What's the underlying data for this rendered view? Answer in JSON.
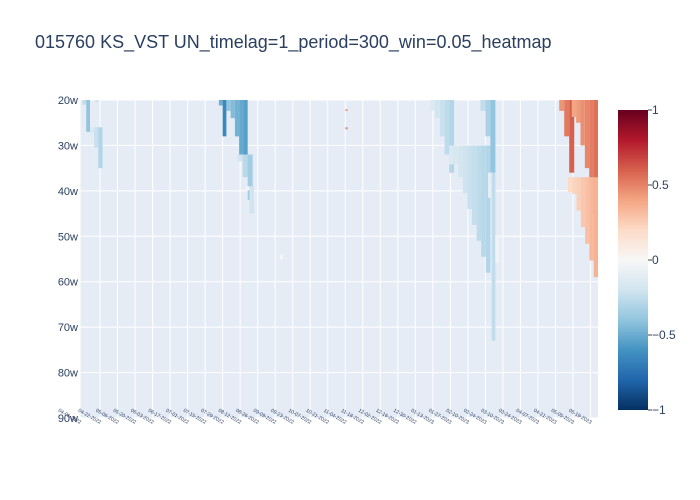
{
  "chart_data": {
    "type": "heatmap",
    "title": "015760 KS_VST UN_timelag=1_period=300_win=0.05_heatmap",
    "y_tick_labels": [
      "20w",
      "30w",
      "40w",
      "50w",
      "60w",
      "70w",
      "80w",
      "90w"
    ],
    "y_tick_values": [
      20,
      30,
      40,
      50,
      60,
      70,
      80,
      90
    ],
    "y_range": [
      20,
      90
    ],
    "x_range": [
      "2022-04-06",
      "2023-05-25"
    ],
    "x_tick_labels": [
      "04-06-2022",
      "04-22-2022",
      "05-06-2022",
      "05-20-2022",
      "06-03-2022",
      "06-17-2022",
      "07-01-2022",
      "07-15-2022",
      "07-29-2022",
      "08-12-2022",
      "08-26-2022",
      "09-09-2022",
      "09-23-2022",
      "10-07-2022",
      "10-21-2022",
      "11-04-2022",
      "11-18-2022",
      "12-02-2022",
      "12-16-2022",
      "12-30-2022",
      "01-13-2023",
      "01-27-2023",
      "02-10-2023",
      "02-24-2023",
      "03-10-2023",
      "03-24-2023",
      "04-07-2023",
      "04-21-2023",
      "05-05-2023",
      "05-19-2023"
    ],
    "colorscale": "RdBu reversed",
    "colorbar": {
      "range": [
        -1,
        1
      ],
      "tick_labels": [
        "1",
        "0.5",
        "0",
        "−0.5",
        "−1"
      ],
      "tick_values": [
        1,
        0.5,
        0,
        -0.5,
        -1
      ]
    },
    "grid": true,
    "plot_bgcolor": "#e5ecf6",
    "bands": [
      {
        "x_start": "2022-04-08",
        "x_end": "2022-04-14",
        "week_start": 20,
        "week_end": 27,
        "value": -0.4
      },
      {
        "x_start": "2022-04-14",
        "x_end": "2022-04-24",
        "week_start": 26,
        "week_end": 35,
        "value": -0.3
      },
      {
        "x_start": "2022-04-18",
        "x_end": "2022-04-21",
        "week_start": 20,
        "week_end": 22,
        "value": -0.35
      },
      {
        "x_start": "2022-07-26",
        "x_end": "2022-08-01",
        "week_start": 20,
        "week_end": 28,
        "value": -0.65
      },
      {
        "x_start": "2022-08-01",
        "x_end": "2022-08-18",
        "week_start": 20,
        "week_end": 36,
        "value": -0.55
      },
      {
        "x_start": "2022-08-10",
        "x_end": "2022-08-22",
        "week_start": 32,
        "week_end": 42,
        "value": -0.35
      },
      {
        "x_start": "2022-08-16",
        "x_end": "2022-08-23",
        "week_start": 39,
        "week_end": 45,
        "value": -0.2
      },
      {
        "x_start": "2022-09-13",
        "x_end": "2022-09-15",
        "week_start": 54,
        "week_end": 61,
        "value": -0.15
      },
      {
        "x_start": "2022-11-04",
        "x_end": "2022-11-06",
        "week_start": 22,
        "week_end": 25,
        "value": 0.55
      },
      {
        "x_start": "2022-11-04",
        "x_end": "2022-11-06",
        "week_start": 26,
        "week_end": 29,
        "value": 0.6
      },
      {
        "x_start": "2023-01-11",
        "x_end": "2023-01-30",
        "week_start": 20,
        "week_end": 36,
        "value": -0.3
      },
      {
        "x_start": "2023-01-26",
        "x_end": "2023-02-28",
        "week_start": 30,
        "week_end": 58,
        "value": -0.3
      },
      {
        "x_start": "2023-02-20",
        "x_end": "2023-03-04",
        "week_start": 20,
        "week_end": 36,
        "value": -0.4
      },
      {
        "x_start": "2023-02-26",
        "x_end": "2023-03-04",
        "week_start": 36,
        "week_end": 73,
        "value": -0.25
      },
      {
        "x_start": "2023-03-04",
        "x_end": "2023-03-07",
        "week_start": 50,
        "week_end": 88,
        "value": -0.2
      },
      {
        "x_start": "2023-04-24",
        "x_end": "2023-05-06",
        "week_start": 20,
        "week_end": 36,
        "value": 0.6
      },
      {
        "x_start": "2023-05-04",
        "x_end": "2023-05-25",
        "week_start": 20,
        "week_end": 45,
        "value": 0.55
      },
      {
        "x_start": "2023-05-01",
        "x_end": "2023-05-25",
        "week_start": 37,
        "week_end": 59,
        "value": 0.35
      }
    ]
  }
}
